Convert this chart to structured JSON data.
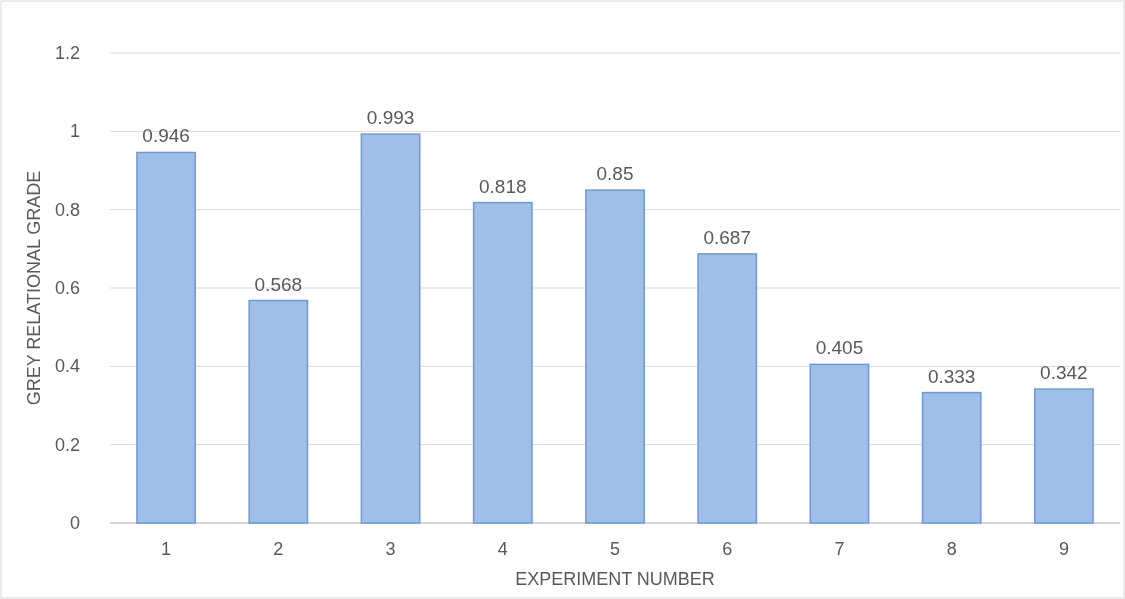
{
  "chart_data": {
    "type": "bar",
    "xlabel": "EXPERIMENT NUMBER",
    "ylabel": "GREY RELATIONAL GRADE",
    "categories": [
      "1",
      "2",
      "3",
      "4",
      "5",
      "6",
      "7",
      "8",
      "9"
    ],
    "values": [
      0.946,
      0.568,
      0.993,
      0.818,
      0.85,
      0.687,
      0.405,
      0.333,
      0.342
    ],
    "color": "#9fbfe8",
    "ylim": [
      0,
      1.2
    ],
    "yticks": [
      0,
      0.2,
      0.4,
      0.6,
      0.8,
      1,
      1.2
    ],
    "grid": "y",
    "data_labels": true
  }
}
